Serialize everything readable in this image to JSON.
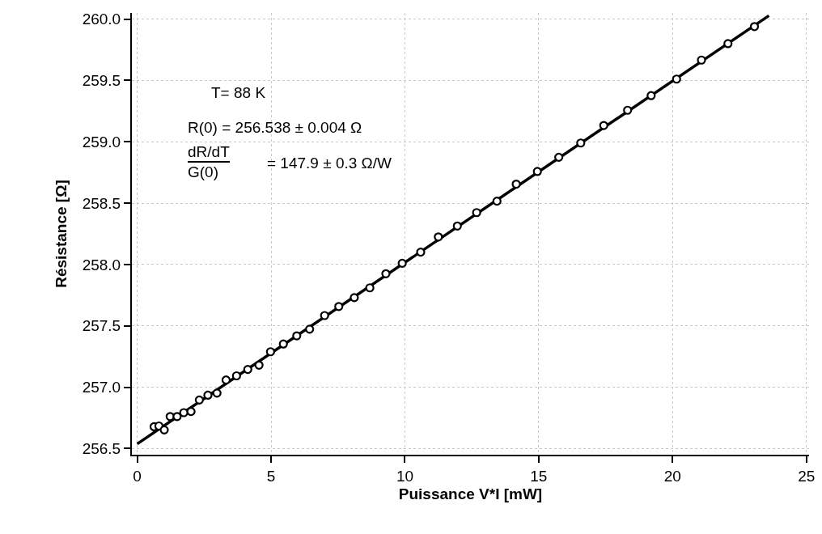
{
  "chart_data": {
    "type": "scatter",
    "xlabel": "Puissance V*I [mW]",
    "ylabel": "Résistance [Ω]",
    "annotations": [
      "T= 88 K",
      "R(0) = 256.538 ± 0.004 Ω",
      "dR/dT",
      "G(0)",
      "= 147.9 ± 0.3 Ω/W"
    ],
    "xlim": [
      -0.2,
      25.1
    ],
    "ylim": [
      256.45,
      260.05
    ],
    "xticks": [
      0,
      5,
      10,
      15,
      20,
      25
    ],
    "yticks": [
      {
        "value": 256.5,
        "label": "256.5"
      },
      {
        "value": 257,
        "label": "257.0"
      },
      {
        "value": 257.5,
        "label": "257.5"
      },
      {
        "value": 258,
        "label": "258.0"
      },
      {
        "value": 258.5,
        "label": "258.5"
      },
      {
        "value": 259,
        "label": "259.0"
      },
      {
        "value": 259.5,
        "label": "259.5"
      },
      {
        "value": 260,
        "label": "260.0"
      }
    ],
    "grid": true,
    "series": [
      {
        "type": "line",
        "color": "#000000",
        "marker": "none",
        "line_style": "solid",
        "x": [
          0,
          23.6
        ],
        "values": [
          256.538,
          260.028
        ]
      },
      {
        "type": "scatter",
        "color": "#000000",
        "marker": "circle",
        "x": [
          0.63,
          0.81,
          1.01,
          1.23,
          1.49,
          1.74,
          2.01,
          2.32,
          2.64,
          2.98,
          3.32,
          3.71,
          4.13,
          4.55,
          4.98,
          5.46,
          5.96,
          6.44,
          7.0,
          7.53,
          8.11,
          8.69,
          9.29,
          9.9,
          10.59,
          11.25,
          11.96,
          12.68,
          13.44,
          14.16,
          14.95,
          15.75,
          16.57,
          17.43,
          18.32,
          19.2,
          20.15,
          21.08,
          22.07,
          23.06
        ],
        "values": [
          256.678,
          256.684,
          256.652,
          256.761,
          256.761,
          256.793,
          256.802,
          256.896,
          256.935,
          256.952,
          257.059,
          257.093,
          257.145,
          257.18,
          257.289,
          257.352,
          257.419,
          257.473,
          257.584,
          257.658,
          257.73,
          257.81,
          257.925,
          258.01,
          258.101,
          258.225,
          258.314,
          258.423,
          258.516,
          258.655,
          258.758,
          258.874,
          258.99,
          259.133,
          259.257,
          259.376,
          259.511,
          259.666,
          259.8,
          259.939
        ]
      }
    ]
  }
}
